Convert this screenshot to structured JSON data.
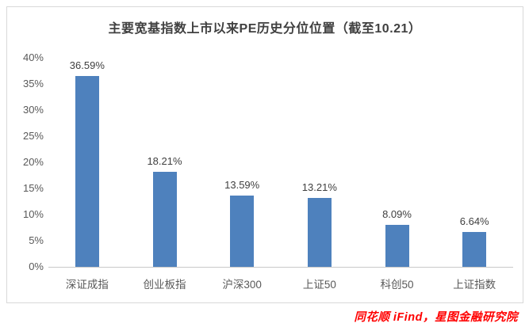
{
  "chart_data": {
    "type": "bar",
    "title": "主要宽基指数上市以来PE历史分位位置（截至10.21）",
    "categories": [
      "深证成指",
      "创业板指",
      "沪深300",
      "上证50",
      "科创50",
      "上证指数"
    ],
    "values": [
      36.59,
      18.21,
      13.59,
      13.21,
      8.09,
      6.64
    ],
    "value_labels": [
      "36.59%",
      "18.21%",
      "13.59%",
      "13.21%",
      "8.09%",
      "6.64%"
    ],
    "xlabel": "",
    "ylabel": "",
    "ylim": [
      0,
      40
    ],
    "ytick_step": 5,
    "ytick_labels": [
      "40%",
      "35%",
      "30%",
      "25%",
      "20%",
      "15%",
      "10%",
      "5%",
      "0%"
    ],
    "grid": false,
    "legend": false,
    "bar_color": "#4e81bd",
    "axis_line_color": "#c9c9c9"
  },
  "footer": {
    "attribution": "同花顺 iFind，星图金融研究院",
    "attribution_color": "#ff0000"
  }
}
